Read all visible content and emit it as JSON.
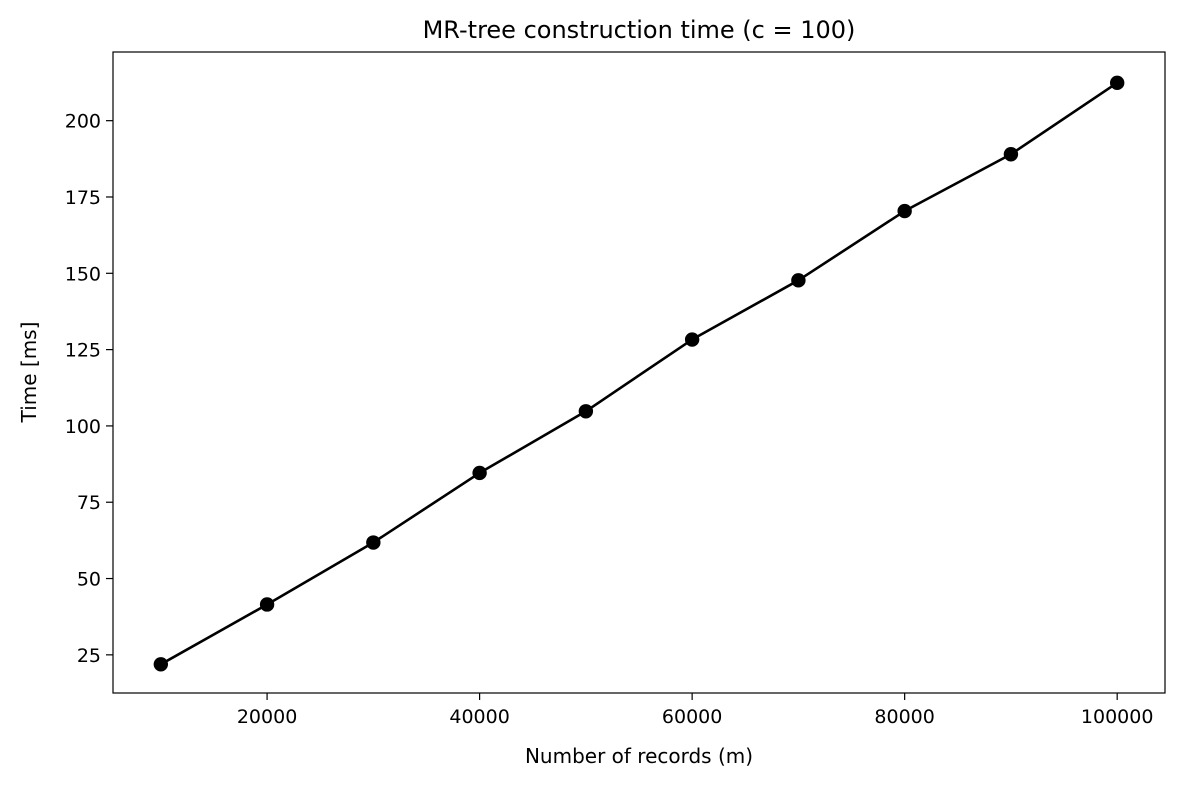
{
  "chart_data": {
    "type": "line",
    "title": "MR-tree construction time (c = 100)",
    "xlabel": "Number of records (m)",
    "ylabel": "Time [ms]",
    "x": [
      10000,
      20000,
      30000,
      40000,
      50000,
      60000,
      70000,
      80000,
      90000,
      100000
    ],
    "series": [
      {
        "values": [
          21.9,
          41.5,
          61.8,
          84.6,
          104.8,
          128.3,
          147.7,
          170.4,
          189.0,
          212.4
        ],
        "color": "#000000",
        "marker": "circle"
      }
    ],
    "xlim": [
      5500,
      104500
    ],
    "ylim": [
      12.5,
      222.5
    ],
    "xticks": [
      20000,
      40000,
      60000,
      80000,
      100000
    ],
    "xtick_labels": [
      "20000",
      "40000",
      "60000",
      "80000",
      "100000"
    ],
    "yticks": [
      25,
      50,
      75,
      100,
      125,
      150,
      175,
      200
    ],
    "ytick_labels": [
      "25",
      "50",
      "75",
      "100",
      "125",
      "150",
      "175",
      "200"
    ],
    "grid": false,
    "legend": "none"
  }
}
